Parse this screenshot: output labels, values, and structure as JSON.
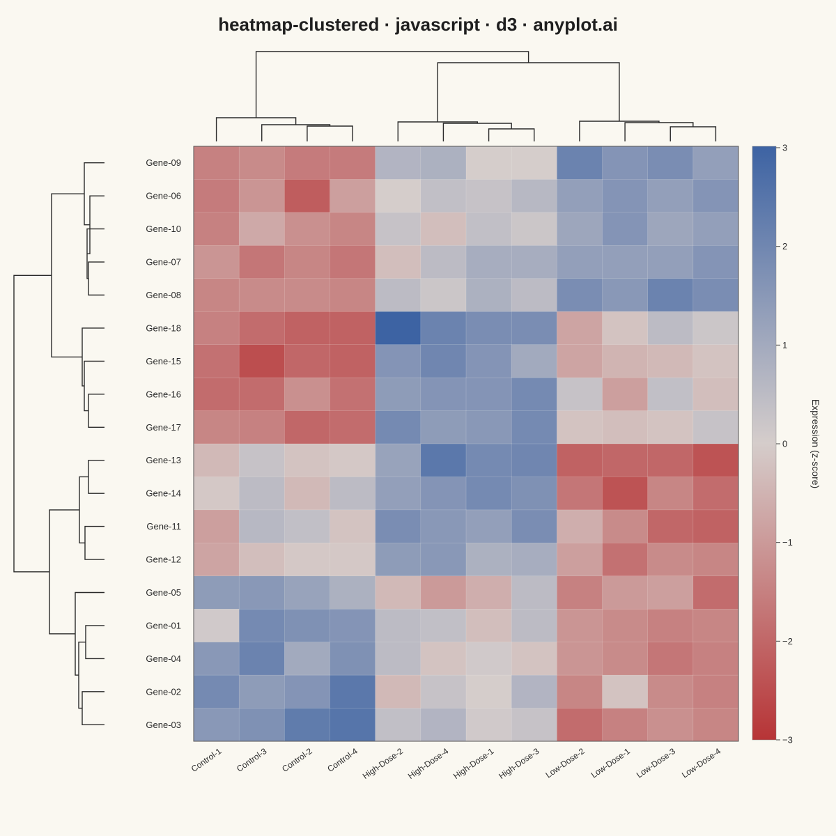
{
  "chart_data": {
    "type": "heatmap",
    "title": "heatmap-clustered · javascript · d3 · anyplot.ai",
    "rows": [
      "Gene-09",
      "Gene-06",
      "Gene-10",
      "Gene-07",
      "Gene-08",
      "Gene-18",
      "Gene-15",
      "Gene-16",
      "Gene-17",
      "Gene-13",
      "Gene-14",
      "Gene-11",
      "Gene-12",
      "Gene-05",
      "Gene-01",
      "Gene-04",
      "Gene-02",
      "Gene-03"
    ],
    "columns": [
      "Control-1",
      "Control-3",
      "Control-2",
      "Control-4",
      "High-Dose-2",
      "High-Dose-4",
      "High-Dose-1",
      "High-Dose-3",
      "Low-Dose-2",
      "Low-Dose-1",
      "Low-Dose-3",
      "Low-Dose-4"
    ],
    "values": [
      [
        -1.5,
        -1.3,
        -1.6,
        -1.6,
        0.7,
        0.8,
        0.0,
        0.0,
        2.1,
        1.6,
        1.8,
        1.3
      ],
      [
        -1.6,
        -1.1,
        -2.2,
        -0.9,
        0.0,
        0.4,
        0.3,
        0.6,
        1.3,
        1.6,
        1.3,
        1.6
      ],
      [
        -1.5,
        -0.7,
        -1.2,
        -1.4,
        0.3,
        -0.3,
        0.4,
        0.2,
        1.1,
        1.6,
        1.1,
        1.3
      ],
      [
        -1.1,
        -1.7,
        -1.4,
        -1.7,
        -0.3,
        0.5,
        0.9,
        0.9,
        1.3,
        1.3,
        1.3,
        1.6
      ],
      [
        -1.4,
        -1.3,
        -1.3,
        -1.4,
        0.5,
        0.2,
        0.8,
        0.5,
        1.8,
        1.5,
        2.1,
        1.8
      ],
      [
        -1.5,
        -1.9,
        -2.1,
        -2.1,
        3.0,
        2.1,
        1.8,
        1.8,
        -0.8,
        -0.2,
        0.5,
        0.2
      ],
      [
        -1.8,
        -2.5,
        -2.0,
        -2.1,
        1.6,
        2.0,
        1.6,
        1.0,
        -0.8,
        -0.5,
        -0.4,
        -0.2
      ],
      [
        -1.9,
        -1.9,
        -1.2,
        -1.8,
        1.4,
        1.6,
        1.6,
        1.9,
        0.3,
        -0.9,
        0.4,
        -0.3
      ],
      [
        -1.4,
        -1.5,
        -2.0,
        -1.9,
        1.9,
        1.4,
        1.5,
        1.9,
        -0.2,
        -0.3,
        -0.2,
        0.3
      ],
      [
        -0.4,
        0.3,
        -0.2,
        -0.1,
        1.2,
        2.4,
        1.9,
        2.0,
        -2.1,
        -2.0,
        -2.0,
        -2.4
      ],
      [
        -0.1,
        0.5,
        -0.4,
        0.5,
        1.3,
        1.6,
        1.9,
        1.7,
        -1.7,
        -2.4,
        -1.4,
        -1.9
      ],
      [
        -0.9,
        0.6,
        0.4,
        -0.2,
        1.8,
        1.5,
        1.3,
        1.8,
        -0.6,
        -1.3,
        -2.0,
        -2.1
      ],
      [
        -0.8,
        -0.3,
        -0.1,
        -0.1,
        1.4,
        1.5,
        0.8,
        0.9,
        -0.9,
        -1.8,
        -1.3,
        -1.4
      ],
      [
        1.4,
        1.5,
        1.2,
        0.8,
        -0.4,
        -1.0,
        -0.6,
        0.5,
        -1.5,
        -1.0,
        -0.9,
        -1.9
      ],
      [
        0.1,
        1.9,
        1.7,
        1.6,
        0.5,
        0.4,
        -0.3,
        0.5,
        -1.1,
        -1.3,
        -1.5,
        -1.4
      ],
      [
        1.5,
        2.1,
        1.0,
        1.7,
        0.5,
        -0.2,
        0.1,
        -0.2,
        -1.1,
        -1.3,
        -1.7,
        -1.5
      ],
      [
        1.9,
        1.4,
        1.6,
        2.4,
        -0.4,
        0.3,
        0.0,
        0.7,
        -1.4,
        -0.2,
        -1.3,
        -1.5
      ],
      [
        1.5,
        1.7,
        2.3,
        2.5,
        0.4,
        0.7,
        0.1,
        0.3,
        -1.9,
        -1.5,
        -1.2,
        -1.4
      ]
    ],
    "colorbar": {
      "label": "Expression (z-score)",
      "range": [
        -3,
        3
      ],
      "ticks": [
        "3",
        "2",
        "1",
        "0",
        "−1",
        "−2",
        "−3"
      ],
      "colors": {
        "low": "#B73436",
        "mid": "#D5CDCB",
        "high": "#3D63A3"
      }
    }
  }
}
